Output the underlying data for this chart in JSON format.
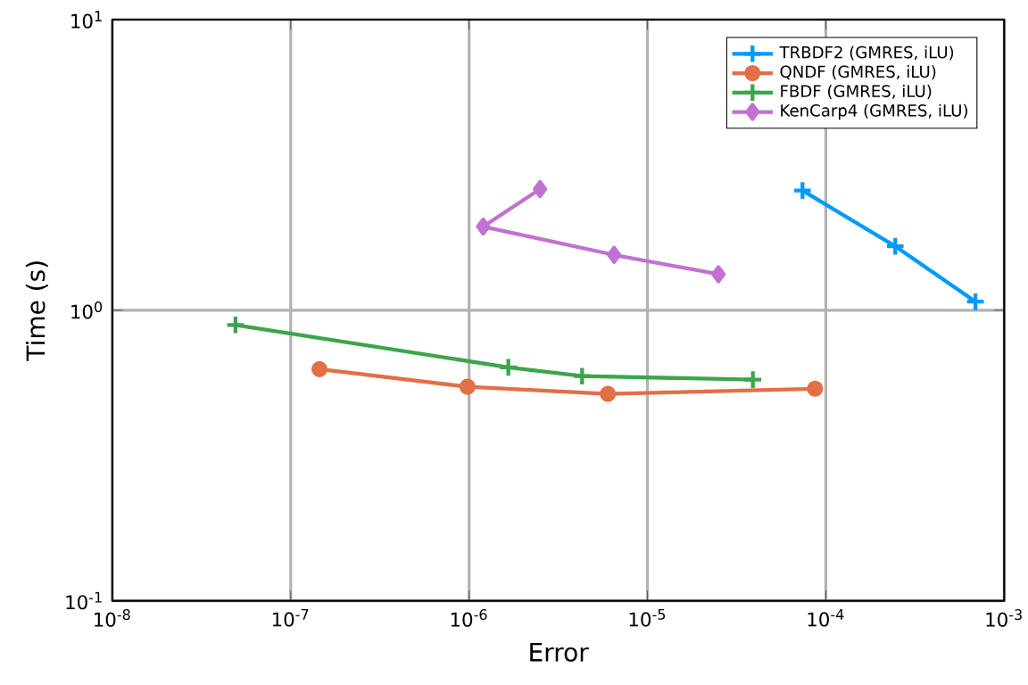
{
  "chart_data": {
    "type": "line",
    "xlabel": "Error",
    "ylabel": "Time (s)",
    "log": "xy",
    "grid": true,
    "legend": "top right",
    "xlim": [
      1e-08,
      0.001
    ],
    "ylim": [
      0.1,
      10
    ],
    "xticks": [
      {
        "value": 1e-08,
        "label": "10$^{-8}$"
      },
      {
        "value": 1e-07,
        "label": "10$^{-7}$"
      },
      {
        "value": 1e-06,
        "label": "10$^{-6}$"
      },
      {
        "value": 1e-05,
        "label": "10$^{-5}$"
      },
      {
        "value": 0.0001,
        "label": "10$^{-4}$"
      },
      {
        "value": 0.001,
        "label": "10$^{-3}$"
      }
    ],
    "yticks": [
      {
        "value": 0.1,
        "label": "10$^{-1}$"
      },
      {
        "value": 1,
        "label": "10$^{0}$"
      },
      {
        "value": 10,
        "label": "10$^{1}$"
      }
    ],
    "series": [
      {
        "name": "TRBDF2 (GMRES, iLU)",
        "color": "#009af9",
        "marker": "cross",
        "x": [
          7.4e-05,
          0.000245,
          0.00069
        ],
        "values": [
          2.58,
          1.66,
          1.07
        ]
      },
      {
        "name": "QNDF (GMRES, iLU)",
        "color": "#e26f46",
        "marker": "circle",
        "x": [
          1.45e-07,
          9.8e-07,
          6e-06,
          8.7e-05
        ],
        "values": [
          0.627,
          0.545,
          0.515,
          0.537
        ]
      },
      {
        "name": "FBDF (GMRES, iLU)",
        "color": "#3da44d",
        "marker": "cross",
        "x": [
          4.9e-08,
          1.66e-06,
          4.3e-06,
          3.9e-05
        ],
        "values": [
          0.89,
          0.636,
          0.593,
          0.577
        ]
      },
      {
        "name": "KenCarp4 (GMRES, iLU)",
        "color": "#c271d2",
        "marker": "diamond",
        "x": [
          2.5e-06,
          1.2e-06,
          6.5e-06,
          2.5e-05
        ],
        "values": [
          2.61,
          1.94,
          1.55,
          1.33
        ]
      }
    ]
  }
}
